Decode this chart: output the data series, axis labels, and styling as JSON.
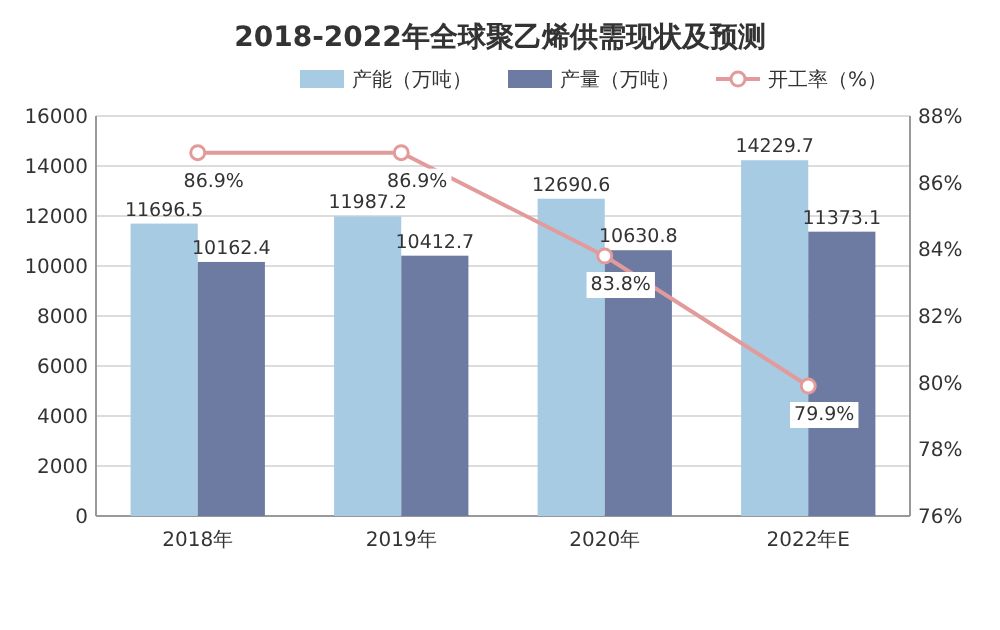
{
  "chart_data": {
    "type": "bar",
    "title": "2018-2022年全球聚乙烯供需现状及预测",
    "categories": [
      "2018年",
      "2019年",
      "2020年",
      "2022年E"
    ],
    "series": [
      {
        "name": "产能（万吨）",
        "color": "#a8cbe4",
        "values": [
          11696.5,
          11987.2,
          12690.6,
          14229.7
        ],
        "value_labels": [
          "11696.5",
          "11987.2",
          "12690.6",
          "14229.7"
        ]
      },
      {
        "name": "产量（万吨）",
        "color": "#6d7ba3",
        "values": [
          10162.4,
          10412.7,
          10630.8,
          11373.1
        ],
        "value_labels": [
          "10162.4",
          "10412.7",
          "10630.8",
          "11373.1"
        ]
      },
      {
        "name": "开工率（%）",
        "type": "line",
        "axis": "y2",
        "color": "#e39a9a",
        "marker": "circle",
        "values": [
          86.9,
          86.9,
          83.8,
          79.9
        ],
        "value_labels": [
          "86.9%",
          "86.9%",
          "83.8%",
          "79.9%"
        ]
      }
    ],
    "ylim": [
      0,
      16000
    ],
    "yticks": [
      0,
      2000,
      4000,
      6000,
      8000,
      10000,
      12000,
      14000,
      16000
    ],
    "y2lim": [
      76,
      88
    ],
    "y2ticks": [
      {
        "value": 76,
        "label": "76%"
      },
      {
        "value": 78,
        "label": "78%"
      },
      {
        "value": 80,
        "label": "80%"
      },
      {
        "value": 82,
        "label": "82%"
      },
      {
        "value": 84,
        "label": "84%"
      },
      {
        "value": 86,
        "label": "86%"
      },
      {
        "value": 88,
        "label": "88%"
      }
    ],
    "grid": "y",
    "legend": "top"
  }
}
